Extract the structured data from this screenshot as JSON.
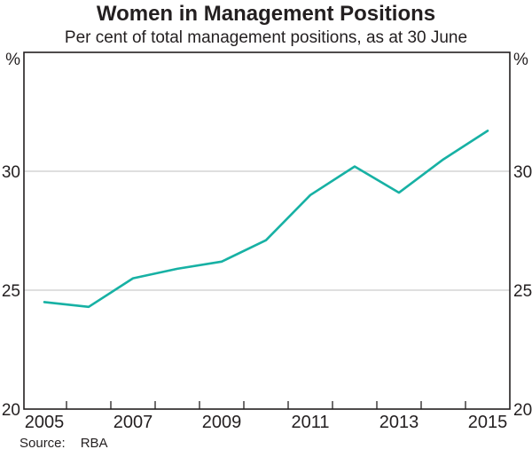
{
  "title": "Women in Management Positions",
  "subtitle": "Per cent of total management positions, as at 30 June",
  "source": {
    "label": "Source:",
    "value": "RBA"
  },
  "colors": {
    "line": "#17b1a4",
    "axis": "#231f20",
    "gridline": "#cccccc",
    "text": "#231f20"
  },
  "chart_data": {
    "type": "line",
    "title": "Women in Management Positions",
    "subtitle": "Per cent of total management positions, as at 30 June",
    "unit_left": "%",
    "unit_right": "%",
    "x": [
      2005,
      2006,
      2007,
      2008,
      2009,
      2010,
      2011,
      2012,
      2013,
      2014,
      2015
    ],
    "series": [
      {
        "name": "Women in management positions",
        "values": [
          24.5,
          24.3,
          25.5,
          25.9,
          26.2,
          27.1,
          29.0,
          30.2,
          29.1,
          30.5,
          31.7
        ],
        "color": "#17b1a4"
      }
    ],
    "xlabel": "",
    "ylabel": "%",
    "ylim": [
      20,
      35
    ],
    "yticks_labeled": [
      20,
      25,
      30
    ],
    "gridlines": [
      25,
      30
    ],
    "xtick_labels": [
      "2005",
      "2007",
      "2009",
      "2011",
      "2013",
      "2015"
    ],
    "xtick_label_years": [
      2005,
      2007,
      2009,
      2011,
      2013,
      2015
    ],
    "grid": true,
    "legend": "none",
    "axis_labels_both_sides": true
  }
}
